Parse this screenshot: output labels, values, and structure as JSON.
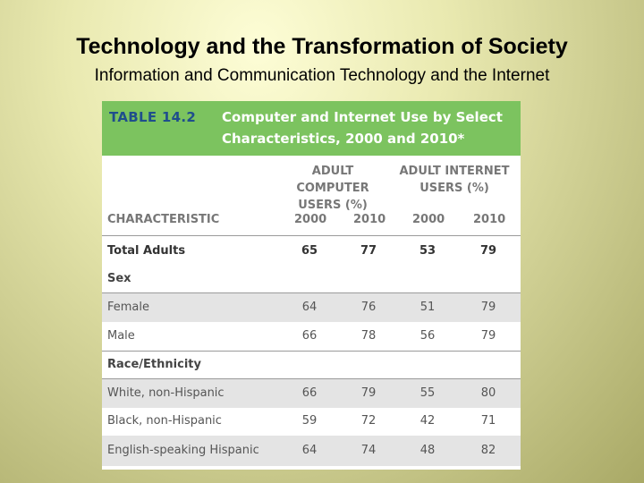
{
  "slide": {
    "title": "Technology and the Transformation of Society",
    "subtitle": "Information and Communication Technology and the Internet"
  },
  "table": {
    "label": "TABLE 14.2",
    "caption": "Computer and Internet Use by Select Characteristics, 2000 and 2010*",
    "group1": "ADULT COMPUTER USERS (%)",
    "group2": "ADULT INTERNET USERS (%)",
    "header": {
      "characteristic": "CHARACTERISTIC",
      "y1": "2000",
      "y2": "2010",
      "y3": "2000",
      "y4": "2010"
    },
    "rows": [
      {
        "label": "Total Adults",
        "v1": "65",
        "v2": "77",
        "v3": "53",
        "v4": "79"
      },
      {
        "label": "Sex"
      },
      {
        "label": "Female",
        "v1": "64",
        "v2": "76",
        "v3": "51",
        "v4": "79"
      },
      {
        "label": "Male",
        "v1": "66",
        "v2": "78",
        "v3": "56",
        "v4": "79"
      },
      {
        "label": "Race/Ethnicity"
      },
      {
        "label": "White, non-Hispanic",
        "v1": "66",
        "v2": "79",
        "v3": "55",
        "v4": "80"
      },
      {
        "label": "Black, non-Hispanic",
        "v1": "59",
        "v2": "72",
        "v3": "42",
        "v4": "71"
      },
      {
        "label": "English-speaking Hispanic",
        "v1": "64",
        "v2": "74",
        "v3": "48",
        "v4": "82"
      }
    ]
  }
}
